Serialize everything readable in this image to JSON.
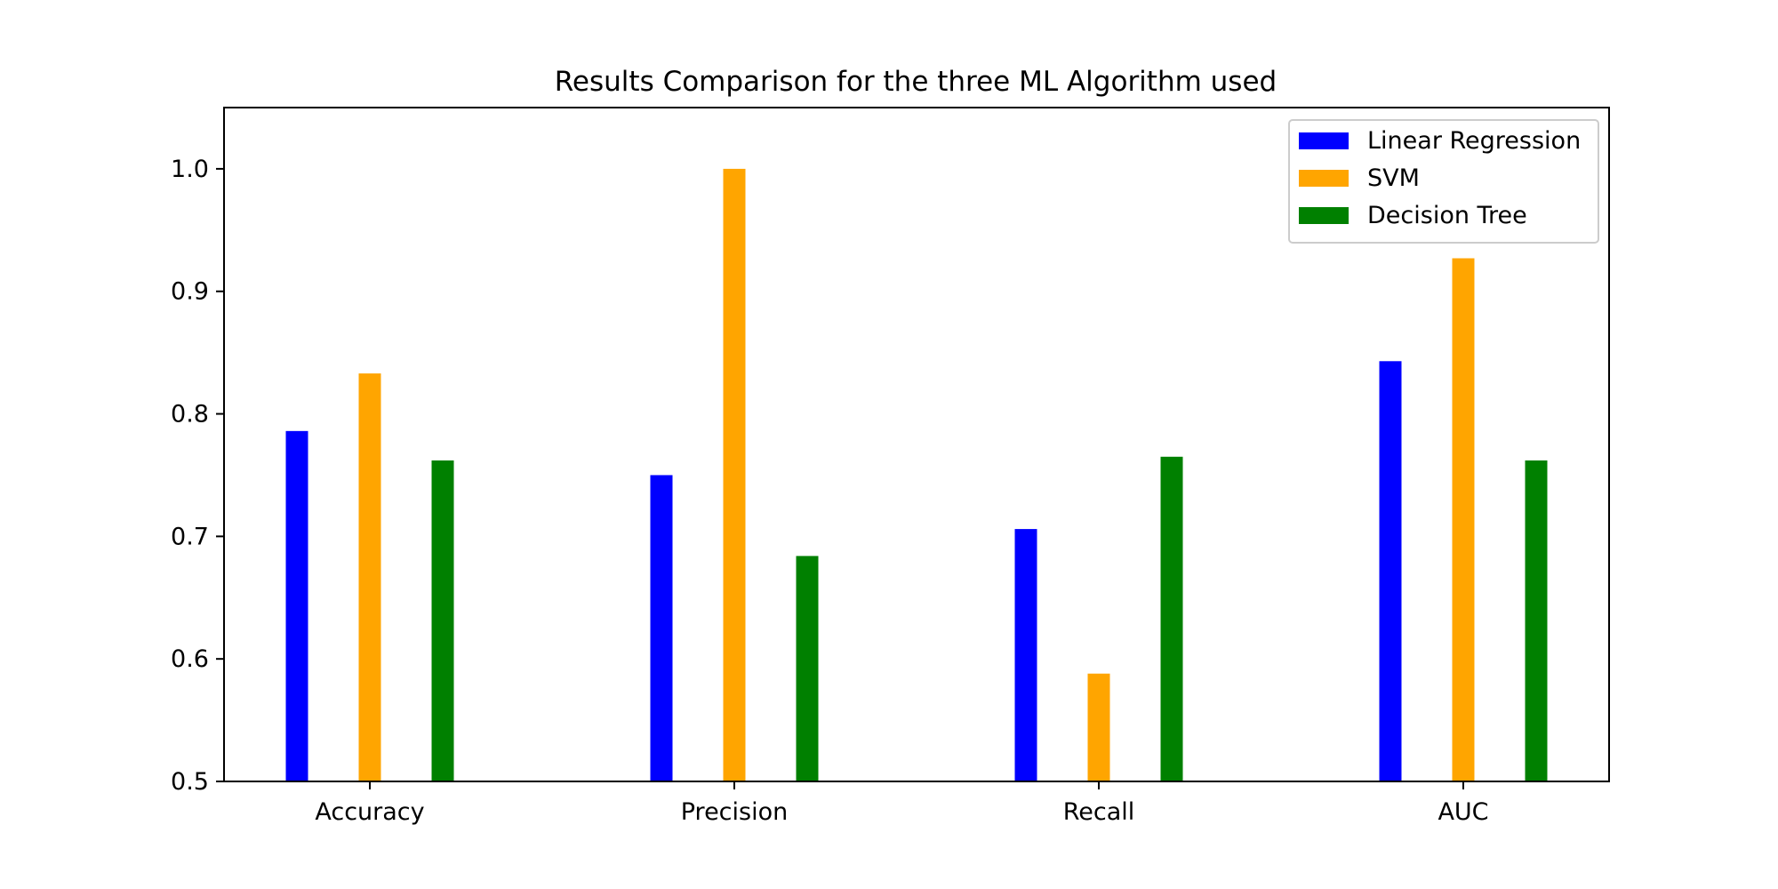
{
  "chart_data": {
    "type": "bar",
    "title": "Results Comparison for the three ML Algorithm used",
    "xlabel": "",
    "ylabel": "",
    "categories": [
      "Accuracy",
      "Precision",
      "Recall",
      "AUC"
    ],
    "series": [
      {
        "name": "Linear Regression",
        "color": "#0000ff",
        "values": [
          0.786,
          0.75,
          0.706,
          0.843
        ]
      },
      {
        "name": "SVM",
        "color": "#ffa500",
        "values": [
          0.833,
          1.0,
          0.588,
          0.927
        ]
      },
      {
        "name": "Decision Tree",
        "color": "#008000",
        "values": [
          0.762,
          0.684,
          0.765,
          0.762
        ]
      }
    ],
    "ylim": [
      0.5,
      1.05
    ],
    "yticks": [
      "0.5",
      "0.6",
      "0.7",
      "0.8",
      "0.9",
      "1.0"
    ],
    "grid": false,
    "legend_position": "top-right"
  }
}
